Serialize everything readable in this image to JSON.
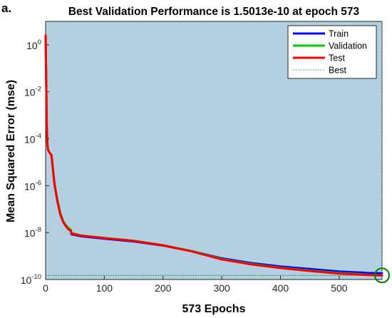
{
  "panel_label": "a.",
  "chart_data": {
    "type": "line",
    "title": "Best Validation Performance is 1.5013e-10 at epoch 573",
    "xlabel": "573 Epochs",
    "ylabel": "Mean Squared Error  (mse)",
    "x_scale": "linear",
    "y_scale": "log",
    "xlim": [
      0,
      573
    ],
    "ylim": [
      1e-10,
      10
    ],
    "x_ticks": [
      0,
      100,
      200,
      300,
      400,
      500
    ],
    "y_ticks": [
      {
        "base": "10",
        "exp": "0",
        "value": 1
      },
      {
        "base": "10",
        "exp": "-2",
        "value": 0.01
      },
      {
        "base": "10",
        "exp": "-4",
        "value": 0.0001
      },
      {
        "base": "10",
        "exp": "-6",
        "value": 1e-06
      },
      {
        "base": "10",
        "exp": "-8",
        "value": 1e-08
      },
      {
        "base": "10",
        "exp": "-10",
        "value": 1e-10
      }
    ],
    "grid": false,
    "legend_position": "top-right",
    "background_color": "#b3cfe0",
    "series": [
      {
        "name": "Train",
        "color": "#0000ff",
        "x": [
          0,
          0.5,
          1,
          1.5,
          2,
          3,
          4,
          5,
          7,
          10,
          15,
          20,
          25,
          30,
          35,
          40,
          43,
          44,
          60,
          100,
          150,
          200,
          250,
          300,
          350,
          400,
          450,
          500,
          550,
          573
        ],
        "y": [
          2.5,
          0.3,
          0.03,
          0.002,
          0.0003,
          6e-05,
          3.5e-05,
          3e-05,
          2.5e-05,
          2e-05,
          1.2e-06,
          2.2e-07,
          6e-08,
          2.8e-08,
          1.8e-08,
          1.3e-08,
          1.2e-08,
          8.5e-09,
          7e-09,
          5.5e-09,
          4.2e-09,
          2.8e-09,
          1.6e-09,
          8e-10,
          5e-10,
          3.6e-10,
          2.8e-10,
          2.2e-10,
          1.9e-10,
          1.85e-10
        ]
      },
      {
        "name": "Validation",
        "color": "#00cc00",
        "x": [
          0,
          0.5,
          1,
          1.5,
          2,
          3,
          4,
          5,
          7,
          10,
          15,
          20,
          25,
          30,
          35,
          40,
          43,
          44,
          60,
          100,
          150,
          200,
          250,
          300,
          350,
          400,
          450,
          500,
          550,
          573
        ],
        "y": [
          2.5,
          0.3,
          0.03,
          0.002,
          0.0003,
          6e-05,
          3.5e-05,
          3e-05,
          2.5e-05,
          2e-05,
          1.3e-06,
          2.5e-07,
          7e-08,
          3e-08,
          2e-08,
          1.5e-08,
          1.3e-08,
          9.5e-09,
          7.6e-09,
          5.9e-09,
          4.5e-09,
          2.9e-09,
          1.6e-09,
          7.5e-10,
          4.6e-10,
          3.2e-10,
          2.4e-10,
          1.9e-10,
          1.6e-10,
          1.5e-10
        ]
      },
      {
        "name": "Test",
        "color": "#ff0000",
        "x": [
          0,
          0.5,
          1,
          1.5,
          2,
          3,
          4,
          5,
          7,
          10,
          15,
          20,
          25,
          30,
          35,
          40,
          43,
          44,
          60,
          100,
          150,
          200,
          250,
          300,
          350,
          400,
          450,
          500,
          550,
          573
        ],
        "y": [
          2.5,
          0.3,
          0.03,
          0.002,
          0.0003,
          6e-05,
          3.5e-05,
          3e-05,
          2.5e-05,
          2e-05,
          1.2e-06,
          2.2e-07,
          6e-08,
          2.8e-08,
          1.8e-08,
          1.3e-08,
          1.2e-08,
          9.2e-09,
          7.4e-09,
          5.8e-09,
          4.4e-09,
          2.85e-09,
          1.55e-09,
          7.2e-10,
          4.4e-10,
          3.1e-10,
          2.3e-10,
          1.8e-10,
          1.55e-10,
          1.48e-10
        ]
      },
      {
        "name": "Best",
        "color": "#2e8b57",
        "style": "dotted",
        "x": [
          0,
          573
        ],
        "y": [
          1.5013e-10,
          1.5013e-10
        ]
      }
    ],
    "best_point": {
      "epoch": 573,
      "value": 1.5013e-10,
      "marker": "circle",
      "color": "#008000"
    }
  }
}
